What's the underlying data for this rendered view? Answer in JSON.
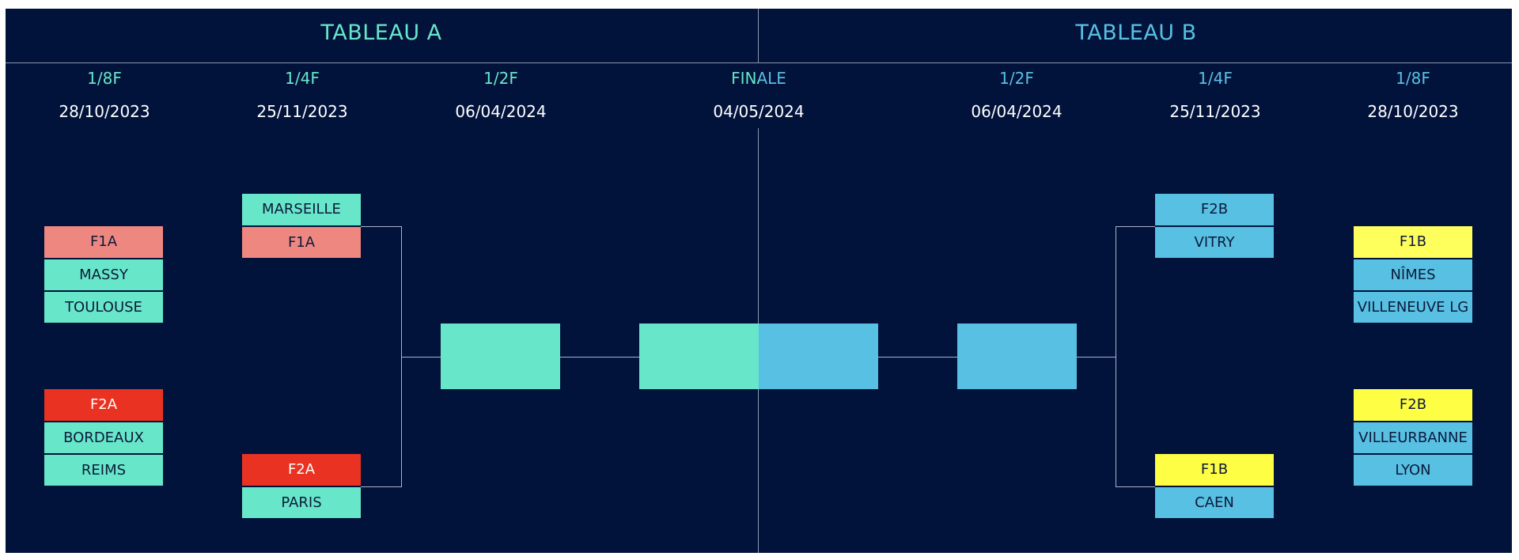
{
  "colors": {
    "background": "#02133b",
    "line": "#a9b2c8",
    "tableau_a": "#68e6c9",
    "tableau_b": "#58c0e3",
    "f1a": "#ef8781",
    "f2a": "#ea3222",
    "f1b": "#fefe5c",
    "f2b": "#fefe44",
    "title_a_text": "#68e6c9",
    "title_b_text": "#58c0e3"
  },
  "headers": {
    "tableau_a": "TABLEAU A",
    "tableau_b": "TABLEAU B"
  },
  "rounds": {
    "a_1_8": {
      "label": "1/8F",
      "date": "28/10/2023"
    },
    "a_1_4": {
      "label": "1/4F",
      "date": "25/11/2023"
    },
    "a_1_2": {
      "label": "1/2F",
      "date": "06/04/2024"
    },
    "finale": {
      "label": "FINALE",
      "date": "04/05/2024"
    },
    "b_1_2": {
      "label": "1/2F",
      "date": "06/04/2024"
    },
    "b_1_4": {
      "label": "1/4F",
      "date": "25/11/2023"
    },
    "b_1_8": {
      "label": "1/8F",
      "date": "28/10/2023"
    }
  },
  "tableau_a": {
    "huitiemes": [
      {
        "seed": "F1A",
        "teams": [
          "MASSY",
          "TOULOUSE"
        ]
      },
      {
        "seed": "F2A",
        "teams": [
          "BORDEAUX",
          "REIMS"
        ]
      }
    ],
    "quarts": [
      {
        "top": "MARSEILLE",
        "bottom": "F1A"
      },
      {
        "top": "F2A",
        "bottom": "PARIS"
      }
    ]
  },
  "tableau_b": {
    "huitiemes": [
      {
        "seed": "F1B",
        "teams": [
          "NÎMES",
          "VILLENEUVE LG"
        ]
      },
      {
        "seed": "F2B",
        "teams": [
          "VILLEURBANNE",
          "LYON"
        ]
      }
    ],
    "quarts": [
      {
        "top": "F2B",
        "bottom": "VITRY"
      },
      {
        "top": "F1B",
        "bottom": "CAEN"
      }
    ]
  }
}
